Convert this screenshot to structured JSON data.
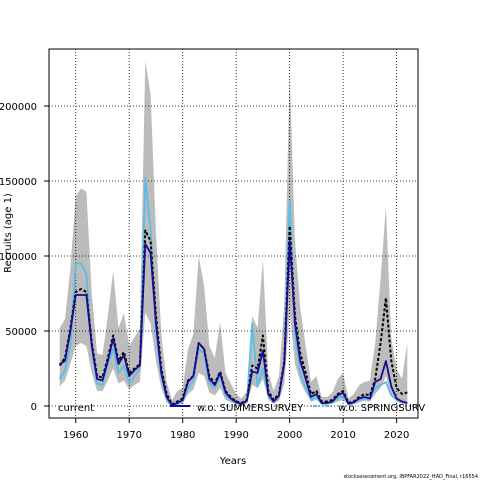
{
  "chart_data": {
    "type": "line",
    "xlabel": "Years",
    "ylabel": "Recruits (age 1)",
    "xlim": [
      1955,
      2024
    ],
    "ylim": [
      -8000,
      238000
    ],
    "x_ticks": [
      1960,
      1970,
      1980,
      1990,
      2000,
      2010,
      2020
    ],
    "y_ticks": [
      0,
      50000,
      100000,
      150000,
      200000
    ],
    "grid": true,
    "legend_position": "bottom",
    "legend": [
      "current",
      "w.o. SUMMERSURVEY",
      "w.o. SPRINGSURV"
    ],
    "footer_text": "stockassessment.org, IBPFAR2022_HAD_Final, r16554",
    "colors": {
      "current": "#000000",
      "summer": "#1a0a8c",
      "spring": "#5bbde6",
      "band": "#bcbcbc"
    },
    "x": [
      1957,
      1958,
      1959,
      1960,
      1961,
      1962,
      1963,
      1964,
      1965,
      1966,
      1967,
      1968,
      1969,
      1970,
      1971,
      1972,
      1973,
      1974,
      1975,
      1976,
      1977,
      1978,
      1979,
      1980,
      1981,
      1982,
      1983,
      1984,
      1985,
      1986,
      1987,
      1988,
      1989,
      1990,
      1991,
      1992,
      1993,
      1994,
      1995,
      1996,
      1997,
      1998,
      1999,
      2000,
      2001,
      2002,
      2003,
      2004,
      2005,
      2006,
      2007,
      2008,
      2009,
      2010,
      2011,
      2012,
      2013,
      2014,
      2015,
      2016,
      2017,
      2018,
      2019,
      2020,
      2021,
      2022
    ],
    "series": [
      {
        "name": "current",
        "style": "dashed",
        "values": [
          27000,
          32000,
          52000,
          76000,
          78000,
          76000,
          42000,
          20000,
          19000,
          32000,
          47000,
          30000,
          36000,
          22000,
          25000,
          28000,
          117000,
          110000,
          60000,
          25000,
          8000,
          1000,
          3000,
          5000,
          17000,
          20000,
          42000,
          38000,
          20000,
          15000,
          23000,
          10000,
          6000,
          3000,
          2000,
          4000,
          27000,
          25000,
          47000,
          10000,
          4000,
          8000,
          30000,
          120000,
          60000,
          35000,
          22000,
          8000,
          10000,
          3000,
          3000,
          4000,
          8000,
          10000,
          2000,
          3000,
          6000,
          8000,
          7000,
          18000,
          42000,
          72000,
          30000,
          12000,
          8000,
          9000
        ]
      },
      {
        "name": "w.o. SUMMERSURVEY",
        "style": "solid",
        "values": [
          28000,
          30000,
          50000,
          74000,
          74000,
          74000,
          40000,
          18000,
          17000,
          30000,
          45000,
          28000,
          34000,
          20000,
          24000,
          27000,
          108000,
          102000,
          55000,
          22000,
          6000,
          500,
          2000,
          4000,
          16000,
          20000,
          42000,
          38000,
          18000,
          14000,
          22000,
          9000,
          5000,
          2500,
          1500,
          3500,
          23000,
          22000,
          37000,
          8000,
          3000,
          7000,
          28000,
          110000,
          55000,
          30000,
          18000,
          6000,
          8000,
          2000,
          2000,
          3000,
          7000,
          9000,
          1500,
          2500,
          5000,
          6000,
          5000,
          16000,
          18000,
          30000,
          13000,
          5000,
          3000,
          2000
        ]
      },
      {
        "name": "w.o. SPRINGSURV",
        "style": "dotted",
        "values": [
          18000,
          24000,
          40000,
          95000,
          95000,
          88000,
          38000,
          15000,
          14000,
          28000,
          38000,
          22000,
          27000,
          15000,
          20000,
          25000,
          152000,
          118000,
          48000,
          20000,
          4000,
          300,
          1500,
          3000,
          12000,
          17000,
          38000,
          35000,
          15000,
          12000,
          20000,
          7000,
          4000,
          2000,
          1000,
          3000,
          55000,
          13000,
          25000,
          7000,
          2500,
          6000,
          30000,
          137000,
          48000,
          22000,
          12000,
          4000,
          6000,
          1500,
          1500,
          2500,
          5000,
          7000,
          1000,
          2000,
          4000,
          5000,
          4000,
          12000,
          14000,
          16000,
          7000,
          4000,
          2500,
          2000
        ]
      }
    ],
    "confidence_band": {
      "lower": [
        13000,
        17000,
        28000,
        40000,
        42000,
        40000,
        22000,
        10000,
        10000,
        17000,
        25000,
        15000,
        17000,
        11000,
        14000,
        16000,
        62000,
        55000,
        30000,
        12000,
        2500,
        -1000,
        500,
        1500,
        8000,
        11000,
        22000,
        20000,
        9000,
        7000,
        12000,
        4000,
        2500,
        1000,
        0,
        1500,
        14000,
        12000,
        18000,
        4000,
        1500,
        3500,
        15000,
        62000,
        28000,
        16000,
        9000,
        3000,
        4000,
        1000,
        1000,
        1500,
        3000,
        4000,
        500,
        1000,
        2500,
        3500,
        3000,
        8000,
        12000,
        20000,
        7000,
        3000,
        1500,
        1500
      ],
      "upper": [
        52000,
        58000,
        92000,
        140000,
        145000,
        143000,
        75000,
        35000,
        34000,
        60000,
        90000,
        52000,
        62000,
        40000,
        46000,
        52000,
        230000,
        208000,
        115000,
        48000,
        16000,
        4000,
        10000,
        12000,
        38000,
        48000,
        100000,
        80000,
        40000,
        32000,
        56000,
        22000,
        15000,
        8000,
        5000,
        10000,
        60000,
        52000,
        98000,
        22000,
        10000,
        20000,
        68000,
        222000,
        110000,
        65000,
        40000,
        16000,
        20000,
        6000,
        6000,
        9000,
        18000,
        22000,
        5000,
        8000,
        14000,
        16000,
        17000,
        42000,
        85000,
        133000,
        45000,
        25000,
        18000,
        42000
      ]
    }
  }
}
